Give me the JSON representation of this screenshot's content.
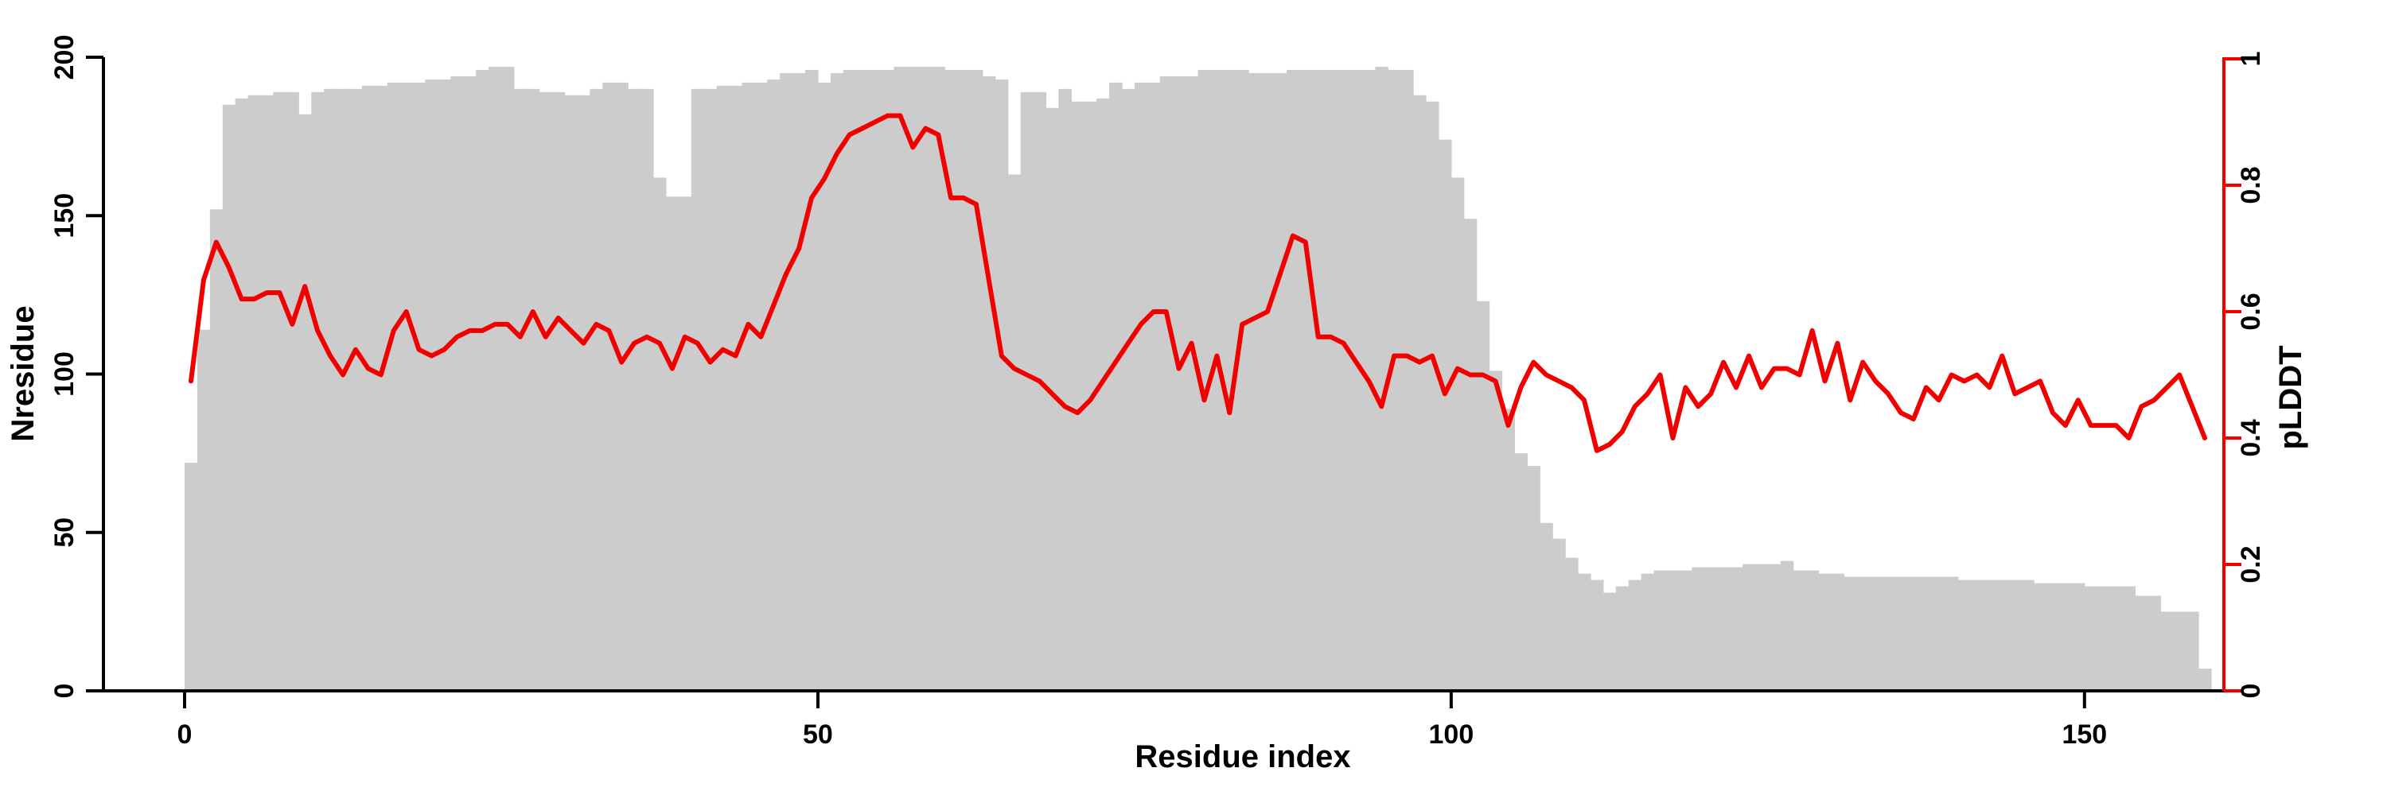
{
  "figure": {
    "background_color": "#ffffff",
    "bar_color": "#cccccc",
    "line_color": "#f20000",
    "axis_color": "#000000",
    "right_axis_color": "#f20000"
  },
  "x_axis": {
    "title": "Residue index",
    "tick_labels": [
      "0",
      "50",
      "100",
      "150"
    ],
    "tick_values": [
      0,
      50,
      100,
      150
    ],
    "range": [
      0,
      160
    ]
  },
  "left_axis": {
    "title": "Nresidue",
    "tick_labels": [
      "0",
      "50",
      "100",
      "150",
      "200"
    ],
    "tick_values": [
      0,
      50,
      100,
      150,
      200
    ],
    "range": [
      0,
      200
    ]
  },
  "right_axis": {
    "title": "pLDDT",
    "tick_labels": [
      "0",
      "0.2",
      "0.4",
      "0.6",
      "0.8",
      "1"
    ],
    "tick_values": [
      0,
      0.2,
      0.4,
      0.6,
      0.8,
      1
    ],
    "range": [
      0,
      1
    ]
  },
  "chart_data": {
    "type": "bar+line",
    "title": "",
    "xlabel": "Residue index",
    "ylabel_left": "Nresidue",
    "ylabel_right": "pLDDT",
    "x_range": [
      0,
      160
    ],
    "left_ylim": [
      0,
      200
    ],
    "right_ylim": [
      0,
      1
    ],
    "grid": "off",
    "legend": "none",
    "residue_start": 1,
    "series": [
      {
        "name": "Nresidue",
        "type": "bar",
        "axis": "left",
        "values": [
          72,
          114,
          152,
          185,
          187,
          188,
          188,
          189,
          189,
          182,
          189,
          190,
          190,
          190,
          191,
          191,
          192,
          192,
          192,
          193,
          193,
          194,
          194,
          196,
          197,
          197,
          190,
          190,
          189,
          189,
          188,
          188,
          190,
          192,
          192,
          190,
          190,
          162,
          156,
          156,
          190,
          190,
          191,
          191,
          192,
          192,
          193,
          195,
          195,
          196,
          192,
          195,
          196,
          196,
          196,
          196,
          197,
          197,
          197,
          197,
          196,
          196,
          196,
          194,
          193,
          163,
          189,
          189,
          184,
          190,
          186,
          186,
          187,
          192,
          190,
          192,
          192,
          194,
          194,
          194,
          196,
          196,
          196,
          196,
          195,
          195,
          195,
          196,
          196,
          196,
          196,
          196,
          196,
          196,
          197,
          196,
          196,
          188,
          186,
          174,
          162,
          149,
          123,
          101,
          89,
          75,
          71,
          53,
          48,
          42,
          37,
          35,
          31,
          33,
          35,
          37,
          38,
          38,
          38,
          39,
          39,
          39,
          39,
          40,
          40,
          40,
          41,
          38,
          38,
          37,
          37,
          36,
          36,
          36,
          36,
          36,
          36,
          36,
          36,
          36,
          35,
          35,
          35,
          35,
          35,
          35,
          34,
          34,
          34,
          34,
          33,
          33,
          33,
          33,
          30,
          30,
          25,
          25,
          25,
          7
        ]
      },
      {
        "name": "pLDDT",
        "type": "line",
        "axis": "right",
        "values": [
          0.49,
          0.65,
          0.71,
          0.67,
          0.62,
          0.62,
          0.63,
          0.63,
          0.58,
          0.64,
          0.57,
          0.53,
          0.5,
          0.54,
          0.51,
          0.5,
          0.57,
          0.6,
          0.54,
          0.53,
          0.54,
          0.56,
          0.57,
          0.57,
          0.58,
          0.58,
          0.56,
          0.6,
          0.56,
          0.59,
          0.57,
          0.55,
          0.58,
          0.57,
          0.52,
          0.55,
          0.56,
          0.55,
          0.51,
          0.56,
          0.55,
          0.52,
          0.54,
          0.53,
          0.58,
          0.56,
          0.61,
          0.66,
          0.7,
          0.78,
          0.81,
          0.85,
          0.88,
          0.89,
          0.9,
          0.91,
          0.91,
          0.86,
          0.89,
          0.88,
          0.78,
          0.78,
          0.77,
          0.65,
          0.53,
          0.51,
          0.5,
          0.49,
          0.47,
          0.45,
          0.44,
          0.46,
          0.49,
          0.52,
          0.55,
          0.58,
          0.6,
          0.6,
          0.51,
          0.55,
          0.46,
          0.53,
          0.44,
          0.58,
          0.59,
          0.6,
          0.66,
          0.72,
          0.71,
          0.56,
          0.56,
          0.55,
          0.52,
          0.49,
          0.45,
          0.53,
          0.53,
          0.52,
          0.53,
          0.47,
          0.51,
          0.5,
          0.5,
          0.49,
          0.42,
          0.48,
          0.52,
          0.5,
          0.49,
          0.48,
          0.46,
          0.38,
          0.39,
          0.41,
          0.45,
          0.47,
          0.5,
          0.4,
          0.48,
          0.45,
          0.47,
          0.52,
          0.48,
          0.53,
          0.48,
          0.51,
          0.51,
          0.5,
          0.57,
          0.49,
          0.55,
          0.46,
          0.52,
          0.49,
          0.47,
          0.44,
          0.43,
          0.48,
          0.46,
          0.5,
          0.49,
          0.5,
          0.48,
          0.53,
          0.47,
          0.48,
          0.49,
          0.44,
          0.42,
          0.46,
          0.42,
          0.42,
          0.42,
          0.4,
          0.45,
          0.46,
          0.48,
          0.5,
          0.45,
          0.4
        ]
      }
    ]
  }
}
